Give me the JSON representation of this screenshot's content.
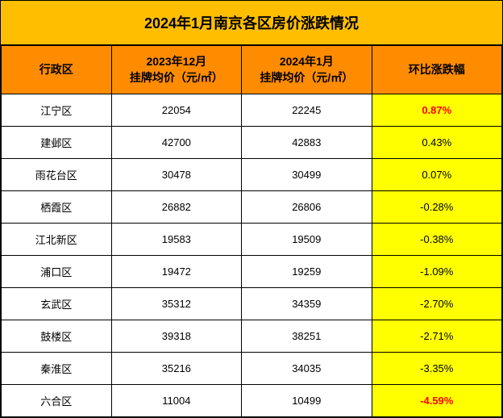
{
  "title": "2024年1月南京各区房价涨跌情况",
  "title_fontsize": 18,
  "header_fontsize": 14,
  "cell_fontsize": 13,
  "colors": {
    "title_bg": "#ffbf00",
    "header_bg": "#ff8c00",
    "change_bg": "#ffff00",
    "highlight": "#ff0000",
    "border": "#000000",
    "text": "#000000"
  },
  "columns": [
    "行政区",
    "2023年12月\n挂牌均价（元/㎡）",
    "2024年1月\n挂牌均价（元/㎡）",
    "环比涨跌幅"
  ],
  "column_widths": [
    "22%",
    "26%",
    "26%",
    "26%"
  ],
  "rows": [
    {
      "district": "江宁区",
      "dec2023": "22054",
      "jan2024": "22245",
      "change": "0.87%",
      "highlight": true
    },
    {
      "district": "建邺区",
      "dec2023": "42700",
      "jan2024": "42883",
      "change": "0.43%",
      "highlight": false
    },
    {
      "district": "雨花台区",
      "dec2023": "30478",
      "jan2024": "30499",
      "change": "0.07%",
      "highlight": false
    },
    {
      "district": "栖霞区",
      "dec2023": "26882",
      "jan2024": "26806",
      "change": "-0.28%",
      "highlight": false
    },
    {
      "district": "江北新区",
      "dec2023": "19583",
      "jan2024": "19509",
      "change": "-0.38%",
      "highlight": false
    },
    {
      "district": "浦口区",
      "dec2023": "19472",
      "jan2024": "19259",
      "change": "-1.09%",
      "highlight": false
    },
    {
      "district": "玄武区",
      "dec2023": "35312",
      "jan2024": "34359",
      "change": "-2.70%",
      "highlight": false
    },
    {
      "district": "鼓楼区",
      "dec2023": "39318",
      "jan2024": "38251",
      "change": "-2.71%",
      "highlight": false
    },
    {
      "district": "秦淮区",
      "dec2023": "35216",
      "jan2024": "34035",
      "change": "-3.35%",
      "highlight": false
    },
    {
      "district": "六合区",
      "dec2023": "11004",
      "jan2024": "10499",
      "change": "-4.59%",
      "highlight": true
    }
  ]
}
